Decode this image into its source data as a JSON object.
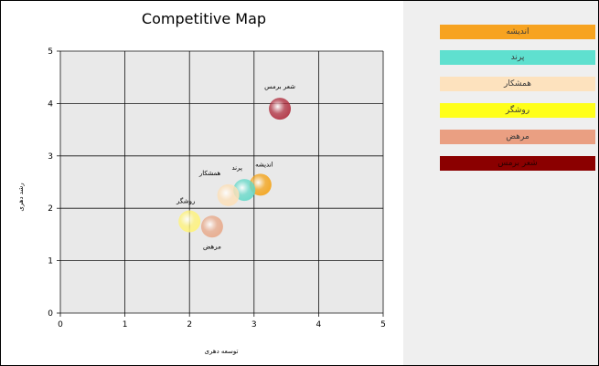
{
  "chart_data": {
    "type": "scatter",
    "subtype": "bubble",
    "title": "Competitive Map",
    "xlabel": "توسعه دهری",
    "ylabel": "رشد دهری",
    "xlim": [
      0,
      5
    ],
    "ylim": [
      0,
      5
    ],
    "xticks": [
      0,
      1,
      2,
      3,
      4,
      5
    ],
    "yticks": [
      0,
      1,
      2,
      3,
      4,
      5
    ],
    "grid": true,
    "legend_position": "right",
    "series": [
      {
        "name": "اندیشه",
        "x": 3.1,
        "y": 2.45,
        "label": "اندیشه",
        "color": "#f4a41a"
      },
      {
        "name": "پرند",
        "x": 2.85,
        "y": 2.35,
        "label": "پرند",
        "color": "#66d9c9"
      },
      {
        "name": "همشکار",
        "x": 2.6,
        "y": 2.25,
        "label": "همشکار",
        "color": "#fde0b8"
      },
      {
        "name": "روشگر",
        "x": 2.0,
        "y": 1.75,
        "label": "روشگر",
        "color": "#fff37a"
      },
      {
        "name": "مرهض",
        "x": 2.35,
        "y": 1.65,
        "label": "مرهض",
        "color": "#e8a98a"
      },
      {
        "name": "شعر برمس",
        "x": 3.4,
        "y": 3.9,
        "label": "شعر برمس",
        "color": "#b03040"
      }
    ]
  },
  "legend": {
    "items": [
      {
        "label": "اندیشه",
        "color": "#f7a320"
      },
      {
        "label": "پرند",
        "color": "#5fe0cf"
      },
      {
        "label": "همشکار",
        "color": "#fde2be"
      },
      {
        "label": "روشگر",
        "color": "#ffff1a"
      },
      {
        "label": "مرهض",
        "color": "#ea9f82"
      },
      {
        "label": "شعر برمس",
        "color": "#8b0000"
      }
    ]
  }
}
